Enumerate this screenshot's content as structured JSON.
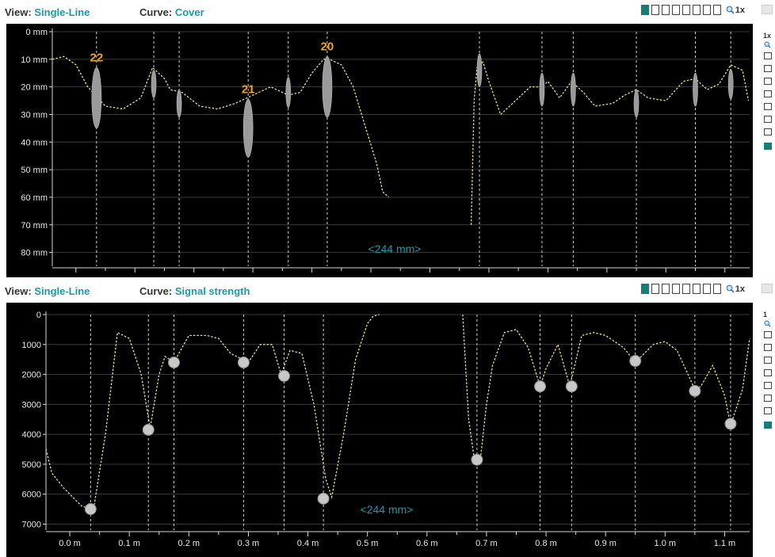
{
  "colors": {
    "accent": "#1b9aa8",
    "curve": "#e8e08a",
    "marker_label": "#f0a030",
    "marker_fill": "#9a9a9a",
    "background": "#000000"
  },
  "toolbar_icons": [
    "zoom-in-icon"
  ],
  "panels": {
    "top": {
      "view_label": "View:",
      "view_value": "Single-Line",
      "curve_label": "Curve:",
      "curve_value": "Cover",
      "zoom_text": "1x",
      "side_zoom_text": "1x",
      "distance_label": "<244 mm>",
      "rebar_labels": [
        {
          "text": "22",
          "x_m": 0.035
        },
        {
          "text": "21",
          "x_m": 0.292
        },
        {
          "text": "20",
          "x_m": 0.426
        }
      ]
    },
    "bottom": {
      "view_label": "View:",
      "view_value": "Single-Line",
      "curve_label": "Curve:",
      "curve_value": "Signal strength",
      "zoom_text": "1x",
      "side_zoom_text": "1",
      "distance_label": "<244 mm>"
    }
  },
  "chart_data": [
    {
      "type": "line",
      "title": "Cover",
      "ylabel": "",
      "xlabel": "",
      "xlim": [
        -0.04,
        1.142
      ],
      "ylim": [
        0,
        85
      ],
      "y_inverted": true,
      "y_ticks": [
        "0 mm",
        "10 mm",
        "20 mm",
        "30 mm",
        "40 mm",
        "50 mm",
        "60 mm",
        "70 mm",
        "80 mm"
      ],
      "series": [
        {
          "x": [
            -0.04,
            -0.02,
            0.0,
            0.02,
            0.05,
            0.08,
            0.11,
            0.13,
            0.15,
            0.16,
            0.18,
            0.21,
            0.24,
            0.27,
            0.29,
            0.31,
            0.33,
            0.36,
            0.38,
            0.4,
            0.42,
            0.43,
            0.45,
            0.47,
            0.49,
            0.51,
            0.52,
            0.53
          ],
          "y": [
            10,
            9,
            12,
            20,
            27,
            28,
            24,
            13,
            17,
            21,
            22,
            27,
            28,
            26,
            24,
            22,
            20,
            23,
            22,
            15,
            10,
            10,
            12,
            20,
            34,
            48,
            58,
            60
          ]
        },
        {
          "x": [
            0.67,
            0.675,
            0.68,
            0.69,
            0.7,
            0.72,
            0.75,
            0.77,
            0.79,
            0.8,
            0.82,
            0.84,
            0.86,
            0.88,
            0.91,
            0.93,
            0.95,
            0.97,
            1.0,
            1.03,
            1.05,
            1.07,
            1.09,
            1.11,
            1.13,
            1.14
          ],
          "y": [
            70,
            25,
            13,
            11,
            18,
            30,
            24,
            20,
            20,
            18,
            24,
            18,
            22,
            27,
            26,
            23,
            21,
            24,
            25,
            18,
            17,
            21,
            19,
            12,
            14,
            25
          ]
        }
      ],
      "markers": [
        {
          "x": 0.035,
          "y": 24,
          "h": 22,
          "w": 12
        },
        {
          "x": 0.132,
          "y": 19,
          "h": 10,
          "w": 6
        },
        {
          "x": 0.175,
          "y": 26,
          "h": 10,
          "w": 6
        },
        {
          "x": 0.292,
          "y": 35,
          "h": 21,
          "w": 12
        },
        {
          "x": 0.36,
          "y": 22,
          "h": 11,
          "w": 6
        },
        {
          "x": 0.426,
          "y": 20,
          "h": 22,
          "w": 12
        },
        {
          "x": 0.684,
          "y": 14,
          "h": 12,
          "w": 6
        },
        {
          "x": 0.79,
          "y": 21,
          "h": 12,
          "w": 6
        },
        {
          "x": 0.843,
          "y": 21,
          "h": 12,
          "w": 6
        },
        {
          "x": 0.95,
          "y": 26,
          "h": 10,
          "w": 6
        },
        {
          "x": 1.05,
          "y": 21,
          "h": 12,
          "w": 6
        },
        {
          "x": 1.11,
          "y": 19,
          "h": 11,
          "w": 6
        }
      ]
    },
    {
      "type": "line",
      "title": "Signal strength",
      "xlabel": "",
      "ylabel": "",
      "xlim": [
        -0.04,
        1.142
      ],
      "ylim": [
        0,
        7200
      ],
      "y_inverted": true,
      "y_ticks": [
        "0",
        "1000",
        "2000",
        "3000",
        "4000",
        "5000",
        "6000",
        "7000"
      ],
      "x_ticks": [
        "0.0 m",
        "0.1 m",
        "0.2 m",
        "0.3 m",
        "0.4 m",
        "0.5 m",
        "0.6 m",
        "0.7 m",
        "0.8 m",
        "0.9 m",
        "1.0 m",
        "1.1 m"
      ],
      "series": [
        {
          "x": [
            -0.04,
            -0.03,
            -0.01,
            0.02,
            0.04,
            0.06,
            0.08,
            0.1,
            0.12,
            0.135,
            0.15,
            0.16,
            0.175,
            0.2,
            0.23,
            0.25,
            0.27,
            0.3,
            0.32,
            0.34,
            0.355,
            0.37,
            0.39,
            0.41,
            0.43,
            0.44,
            0.46,
            0.48,
            0.5,
            0.51,
            0.52
          ],
          "y": [
            4500,
            5300,
            5800,
            6400,
            6500,
            4000,
            600,
            800,
            2000,
            3800,
            2000,
            1400,
            1600,
            700,
            700,
            800,
            1300,
            1600,
            1000,
            1000,
            2000,
            1200,
            1300,
            3000,
            5500,
            6100,
            4000,
            1500,
            300,
            50,
            0
          ]
        },
        {
          "x": [
            0.66,
            0.67,
            0.68,
            0.69,
            0.7,
            0.71,
            0.73,
            0.75,
            0.77,
            0.79,
            0.8,
            0.82,
            0.84,
            0.86,
            0.88,
            0.9,
            0.93,
            0.95,
            0.98,
            1.0,
            1.02,
            1.05,
            1.06,
            1.08,
            1.1,
            1.11,
            1.13,
            1.142
          ],
          "y": [
            0,
            3500,
            4900,
            4800,
            3000,
            1700,
            600,
            500,
            1100,
            2400,
            1800,
            1000,
            2400,
            700,
            600,
            700,
            1100,
            1600,
            1000,
            900,
            1200,
            2500,
            2400,
            1700,
            2700,
            3700,
            2500,
            800
          ]
        }
      ],
      "points": [
        {
          "x": 0.035,
          "y": 6500
        },
        {
          "x": 0.132,
          "y": 3850
        },
        {
          "x": 0.175,
          "y": 1600
        },
        {
          "x": 0.292,
          "y": 1600
        },
        {
          "x": 0.36,
          "y": 2050
        },
        {
          "x": 0.426,
          "y": 6150
        },
        {
          "x": 0.684,
          "y": 4850
        },
        {
          "x": 0.79,
          "y": 2400
        },
        {
          "x": 0.843,
          "y": 2400
        },
        {
          "x": 0.95,
          "y": 1550
        },
        {
          "x": 1.05,
          "y": 2550
        },
        {
          "x": 1.11,
          "y": 3650
        }
      ]
    }
  ]
}
